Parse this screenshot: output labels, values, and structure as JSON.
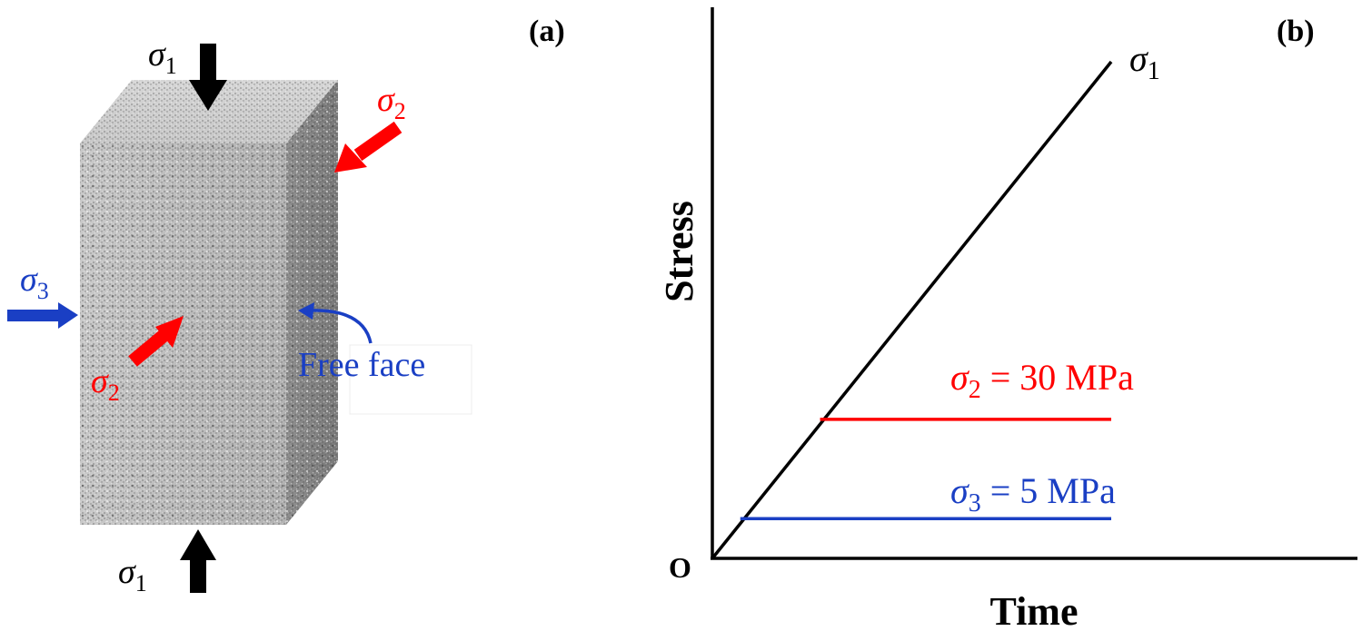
{
  "panel_a": {
    "label": "(a)",
    "sigma1_top": {
      "sym": "σ",
      "sub": "1"
    },
    "sigma1_bottom": {
      "sym": "σ",
      "sub": "1"
    },
    "sigma2_right": {
      "sym": "σ",
      "sub": "2"
    },
    "sigma2_front": {
      "sym": "σ",
      "sub": "2"
    },
    "sigma3_left": {
      "sym": "σ",
      "sub": "3"
    },
    "free_face_label": "Free face"
  },
  "panel_b": {
    "label": "(b)",
    "xlabel": "Time",
    "ylabel": "Stress",
    "origin_label": "O",
    "sigma1_line_label": {
      "sym": "σ",
      "sub": "1"
    },
    "sigma2_line_label": {
      "sym": "σ",
      "sub": "2",
      "rest": " = 30 MPa"
    },
    "sigma3_line_label": {
      "sym": "σ",
      "sub": "3",
      "rest": " = 5 MPa"
    }
  },
  "colors": {
    "sigma1": "#000000",
    "sigma2": "#ff0000",
    "sigma3": "#1a3fc4",
    "free_face": "#1a3fc4"
  },
  "chart_data": {
    "type": "line",
    "xlabel": "Time",
    "ylabel": "Stress",
    "series": [
      {
        "name": "σ1",
        "x": [
          0,
          1
        ],
        "y": [
          0,
          1
        ]
      },
      {
        "name": "σ2 = 30 MPa",
        "x": [
          0.27,
          1
        ],
        "y": [
          0.28,
          0.28
        ]
      },
      {
        "name": "σ3 = 5 MPa",
        "x": [
          0.07,
          1
        ],
        "y": [
          0.08,
          0.08
        ]
      }
    ],
    "grid": false
  }
}
